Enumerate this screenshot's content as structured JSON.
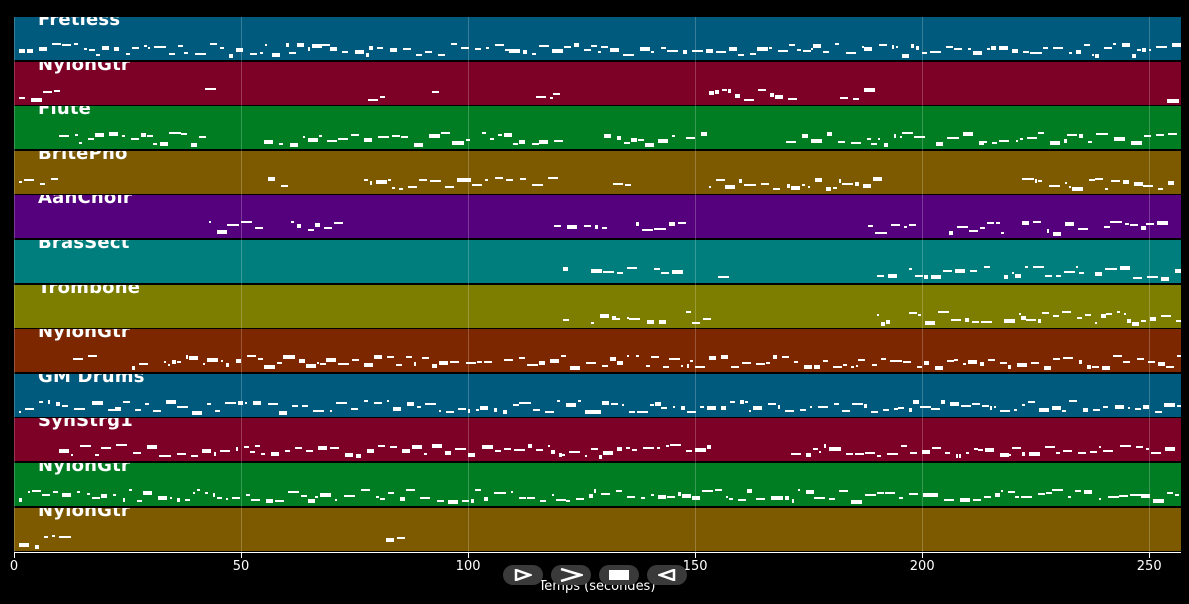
{
  "tracks": [
    {
      "name": "Fretless",
      "color": "#005a7d"
    },
    {
      "name": "NylonGtr",
      "color": "#7d0027"
    },
    {
      "name": "Flute",
      "color": "#007d23"
    },
    {
      "name": "BritePno",
      "color": "#7d5a00"
    },
    {
      "name": "AahChoir",
      "color": "#55007d"
    },
    {
      "name": "BrasSect",
      "color": "#007d7d"
    },
    {
      "name": "Trombone",
      "color": "#7d7d00"
    },
    {
      "name": "NylonGtr",
      "color": "#7d2700"
    },
    {
      "name": "GM Drums",
      "color": "#005a7d"
    },
    {
      "name": "SynStrg1",
      "color": "#7d0027"
    },
    {
      "name": "NylonGtr",
      "color": "#007d23"
    },
    {
      "name": "NylonGtr",
      "color": "#7d5a00"
    }
  ],
  "axis": {
    "xlabel": "Temps (secondes)",
    "xlim": [
      0,
      257
    ],
    "ticks": [
      "0",
      "50",
      "100",
      "150",
      "200",
      "250"
    ],
    "grid": true
  },
  "controls": [
    {
      "name": "play-button",
      "icon": "play-icon"
    },
    {
      "name": "fast-forward-button",
      "icon": "fast-forward-icon"
    },
    {
      "name": "stop-button",
      "icon": "stop-icon"
    },
    {
      "name": "rewind-button",
      "icon": "rewind-icon"
    }
  ]
}
